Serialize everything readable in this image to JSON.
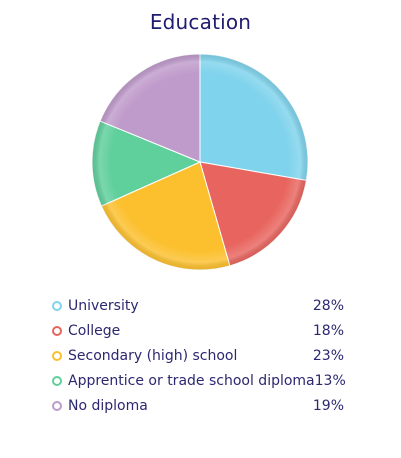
{
  "chart_data": {
    "type": "pie",
    "title": "Education",
    "categories": [
      "University",
      "College",
      "Secondary (high) school",
      "Apprentice or trade school diploma",
      "No diploma"
    ],
    "values": [
      28,
      18,
      23,
      13,
      19
    ],
    "value_labels": [
      "28%",
      "18%",
      "23%",
      "13%",
      "19%"
    ],
    "colors": [
      "#7fd3ec",
      "#e8655f",
      "#fcc02e",
      "#5fcf9c",
      "#bf9bcb"
    ],
    "legend_position": "bottom",
    "start_angle_deg": 0
  }
}
